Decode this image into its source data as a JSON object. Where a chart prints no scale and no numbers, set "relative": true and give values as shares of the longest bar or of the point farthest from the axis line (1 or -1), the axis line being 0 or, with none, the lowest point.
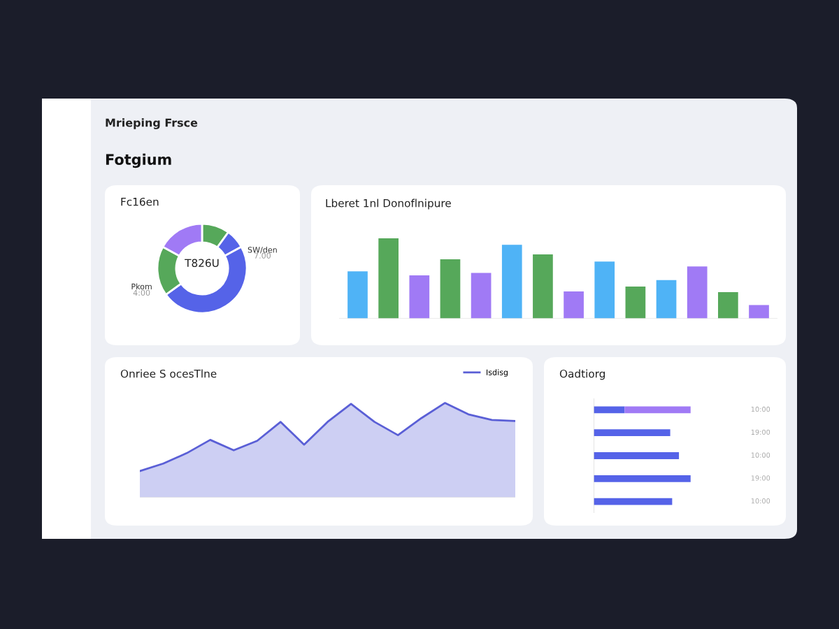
{
  "chart_data": [
    {
      "type": "other",
      "title": "Mrieping Frsce",
      "subtitle": "Fotgium"
    },
    {
      "type": "donut",
      "title": "Fc16en",
      "categories": [
        null,
        null,
        null,
        null,
        null
      ],
      "values": [
        10,
        7,
        48,
        18,
        17
      ],
      "colors": [
        "#56a85a",
        "#5563e8",
        "#5563e8",
        "#56a85a",
        "#a07af5"
      ],
      "annotations": [
        "T826U",
        "SW/den",
        "7.00",
        "Pkom",
        "4:00"
      ]
    },
    {
      "type": "bar",
      "title": "Lberet 1nl Donoflnipure",
      "relative": true,
      "categories": [
        null,
        null,
        null,
        null,
        null,
        null,
        null,
        null,
        null,
        null,
        null,
        null,
        null,
        null
      ],
      "values": [
        0.59,
        1,
        0.54,
        0.74,
        0.57,
        0.92,
        0.8,
        0.34,
        0.71,
        0.4,
        0.48,
        0.65,
        0.33,
        0.17
      ],
      "colors": [
        "#4fb3f6",
        "#56a85a",
        "#a07af5",
        "#56a85a",
        "#a07af5",
        "#4fb3f6",
        "#56a85a",
        "#a07af5",
        "#4fb3f6",
        "#56a85a",
        "#4fb3f6",
        "#a07af5",
        "#56a85a",
        "#a07af5"
      ]
    },
    {
      "type": "area",
      "title": "Onriee S ocesTlne",
      "relative": true,
      "categories": [
        null,
        null,
        null,
        null,
        null,
        null,
        null,
        null,
        null,
        null,
        null,
        null,
        null,
        null,
        null,
        null,
        null
      ],
      "series": [
        {
          "name": "Isdisg",
          "color": "#5a5fd6",
          "values": [
            0.28,
            0.36,
            0.47,
            0.61,
            0.5,
            0.6,
            0.8,
            0.56,
            0.8,
            0.99,
            0.8,
            0.66,
            0.84,
            1,
            0.88,
            0.82,
            0.81
          ]
        }
      ],
      "legend": "top right"
    },
    {
      "type": "bar",
      "title": "Oadtiorg",
      "orientation": "horizontal",
      "stacked": true,
      "relative": true,
      "categories": [
        null,
        null,
        null,
        null,
        null
      ],
      "series": [
        {
          "color": "#5563e8",
          "values": [
            0.32,
            0.79,
            0.88,
            1,
            0.81
          ]
        },
        {
          "color": "#a07af5",
          "values": [
            0.68,
            null,
            null,
            null,
            null
          ]
        }
      ],
      "annotations": [
        "10:00",
        "19:00",
        "10:00",
        "19:00",
        "10:00"
      ]
    }
  ]
}
